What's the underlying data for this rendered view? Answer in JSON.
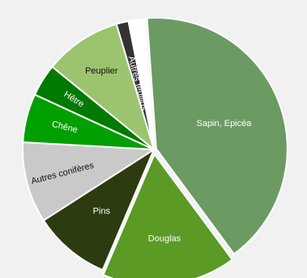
{
  "chart_data": {
    "type": "pie",
    "title": "",
    "legend": "none",
    "slices": [
      {
        "label": "Sapin, Epicéa",
        "value": 41.0,
        "color": "#6b9a62"
      },
      {
        "label": "Douglas",
        "value": 16.5,
        "color": "#5a9a25"
      },
      {
        "label": "Pins",
        "value": 9.5,
        "color": "#2d3b10"
      },
      {
        "label": "Autres conifères",
        "value": 10.0,
        "color": "#c9c9c9"
      },
      {
        "label": "Chêne",
        "value": 6.0,
        "color": "#00a000"
      },
      {
        "label": "Hêtre",
        "value": 4.0,
        "color": "#007a00"
      },
      {
        "label": "Peuplier",
        "value": 9.5,
        "color": "#9cc46e"
      },
      {
        "label": "Autres feuillus",
        "value": 1.5,
        "color": "#333333"
      },
      {
        "label": "",
        "value": 2.0,
        "color": "#ffffff"
      }
    ]
  }
}
